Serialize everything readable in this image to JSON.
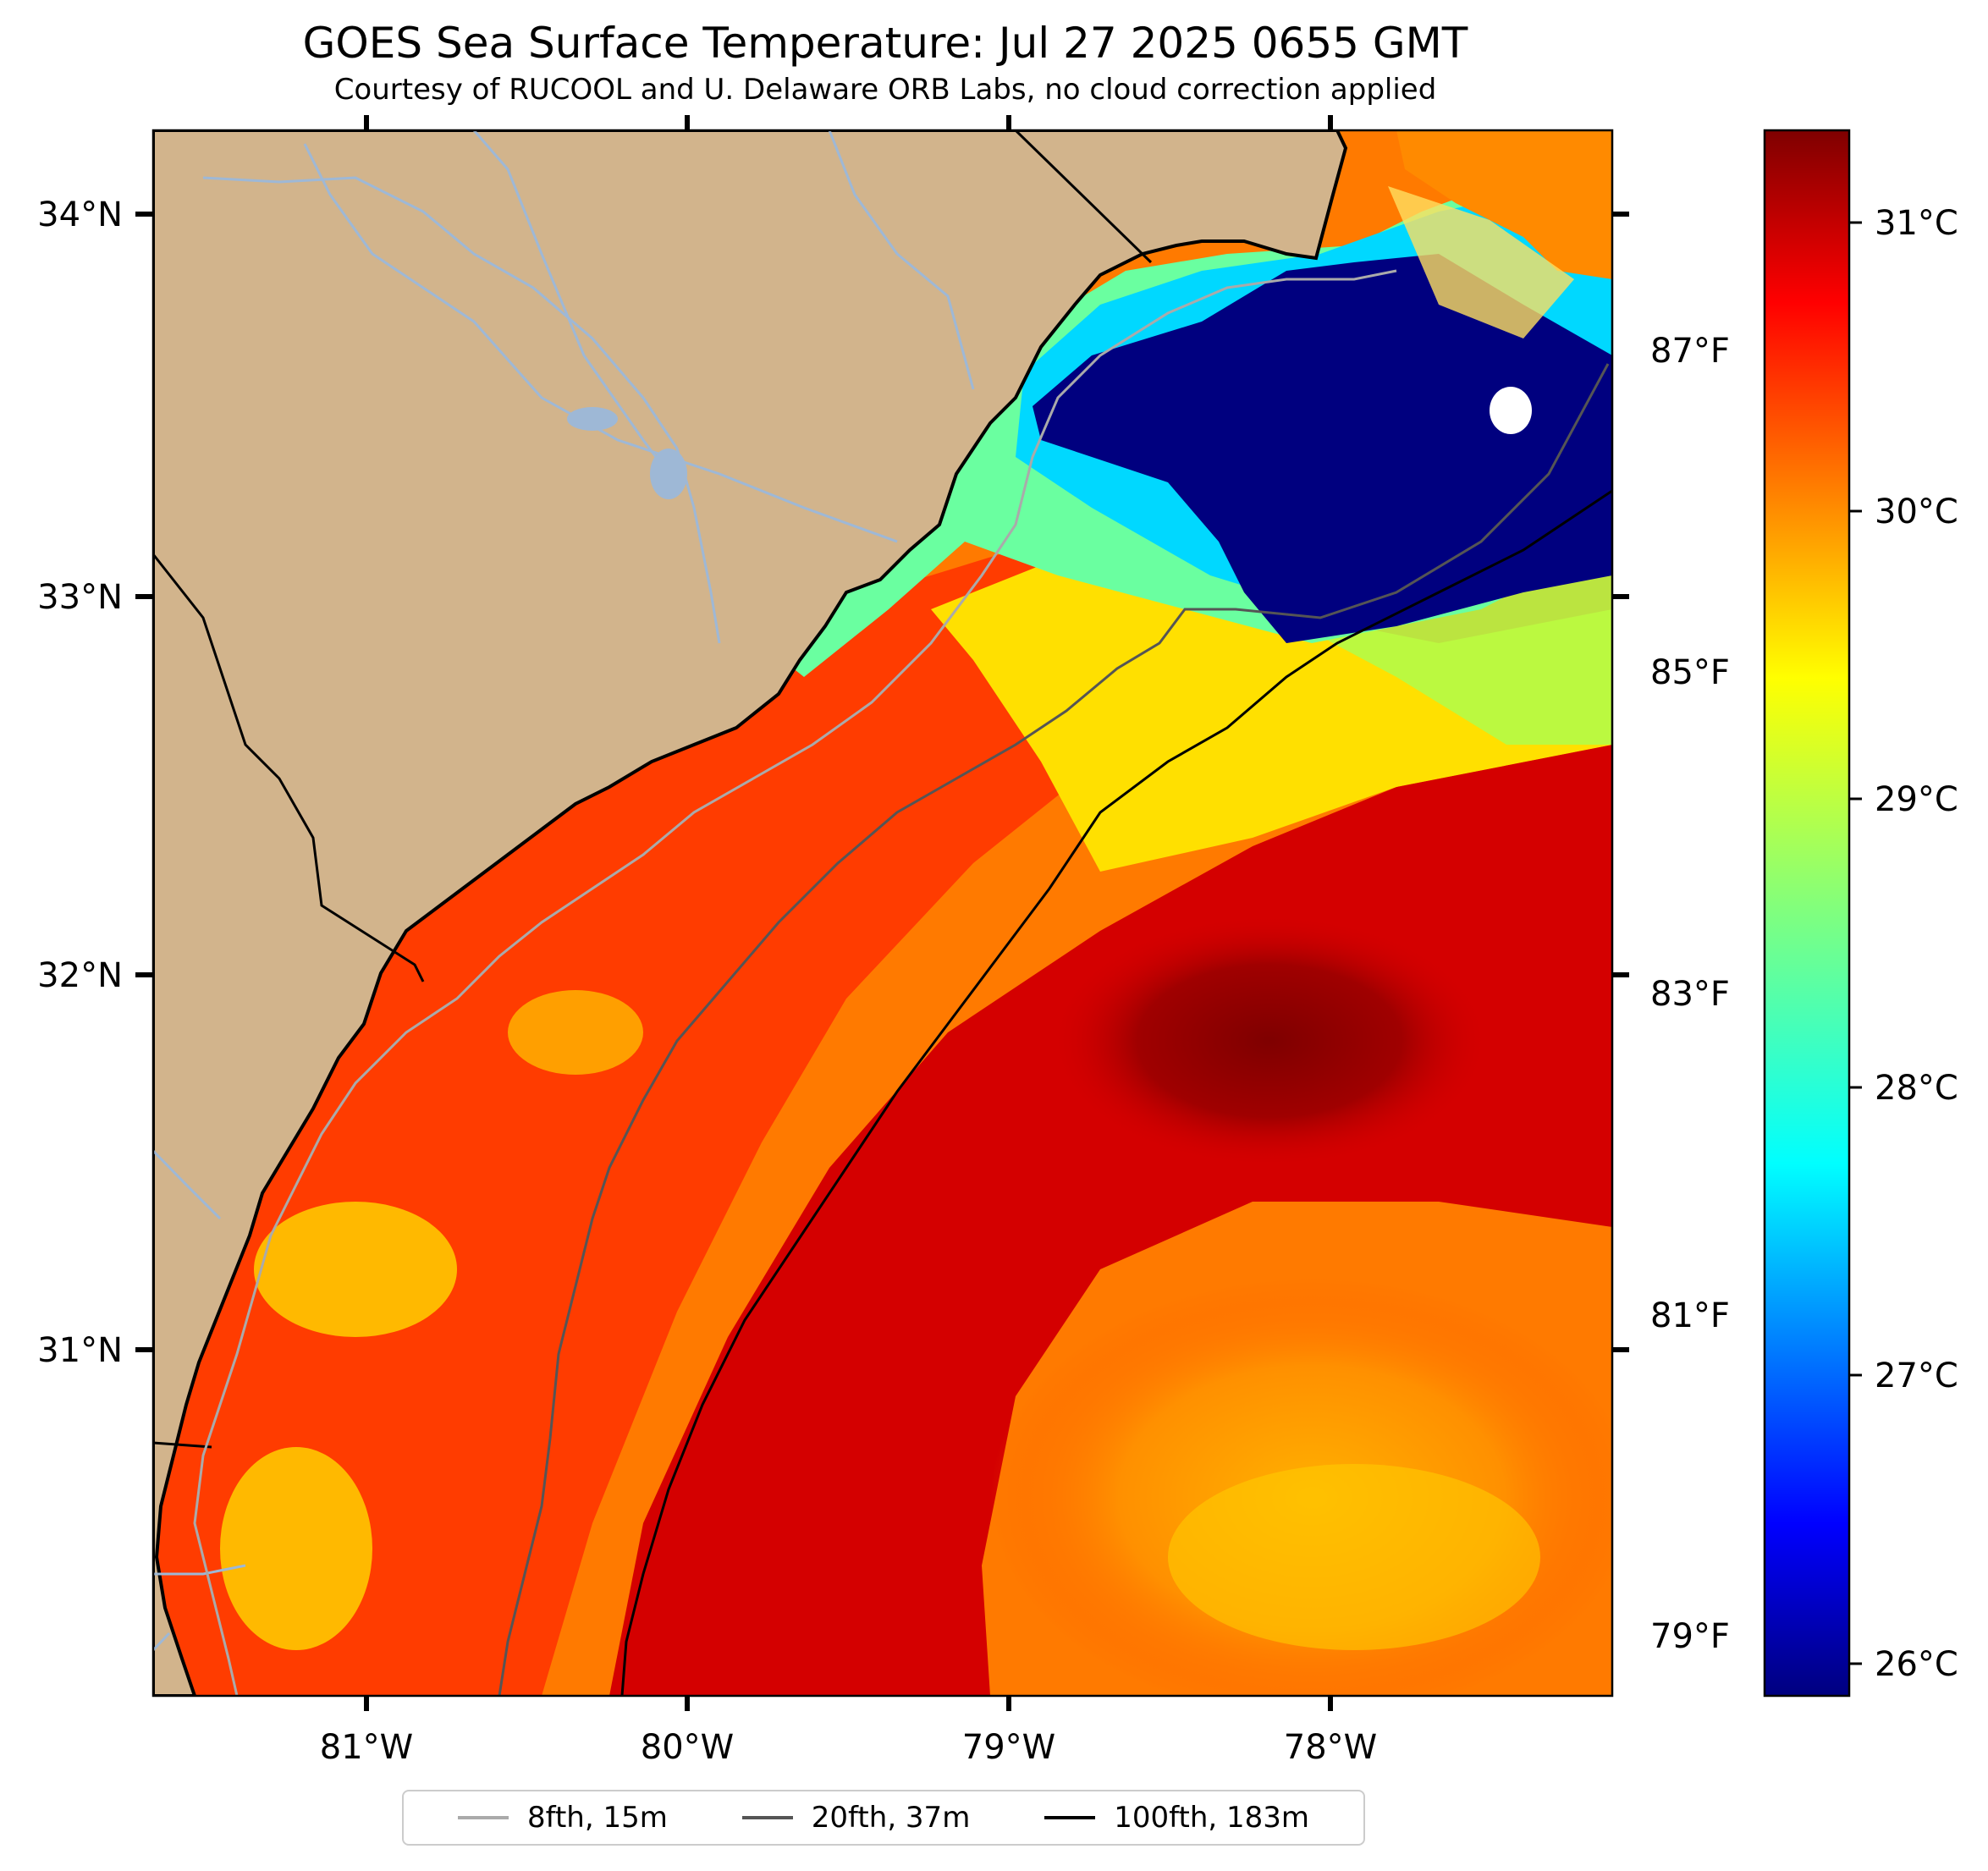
{
  "title": "GOES Sea Surface Temperature: Jul 27 2025 0655 GMT",
  "subtitle": "Courtesy of RUCOOL and U. Delaware ORB Labs, no cloud correction applied",
  "map": {
    "lat_labels": [
      "34°N",
      "33°N",
      "32°N",
      "31°N"
    ],
    "lon_labels": [
      "81°W",
      "80°W",
      "79°W",
      "78°W"
    ],
    "fahrenheit_labels": [
      "87°F",
      "85°F",
      "83°F",
      "81°F",
      "79°F"
    ],
    "land_color": "#d2b48c",
    "coast_color": "#000000",
    "river_color": "#9eb8d6"
  },
  "colorbar": {
    "labels": [
      "31°C",
      "30°C",
      "29°C",
      "28°C",
      "27°C",
      "26°C"
    ],
    "colormap": "jet",
    "range_c": [
      25.8,
      31.3
    ]
  },
  "legend": [
    {
      "label": "8fth, 15m",
      "color": "#aaaaaa"
    },
    {
      "label": "20fth, 37m",
      "color": "#555555"
    },
    {
      "label": "100fth, 183m",
      "color": "#000000"
    }
  ]
}
